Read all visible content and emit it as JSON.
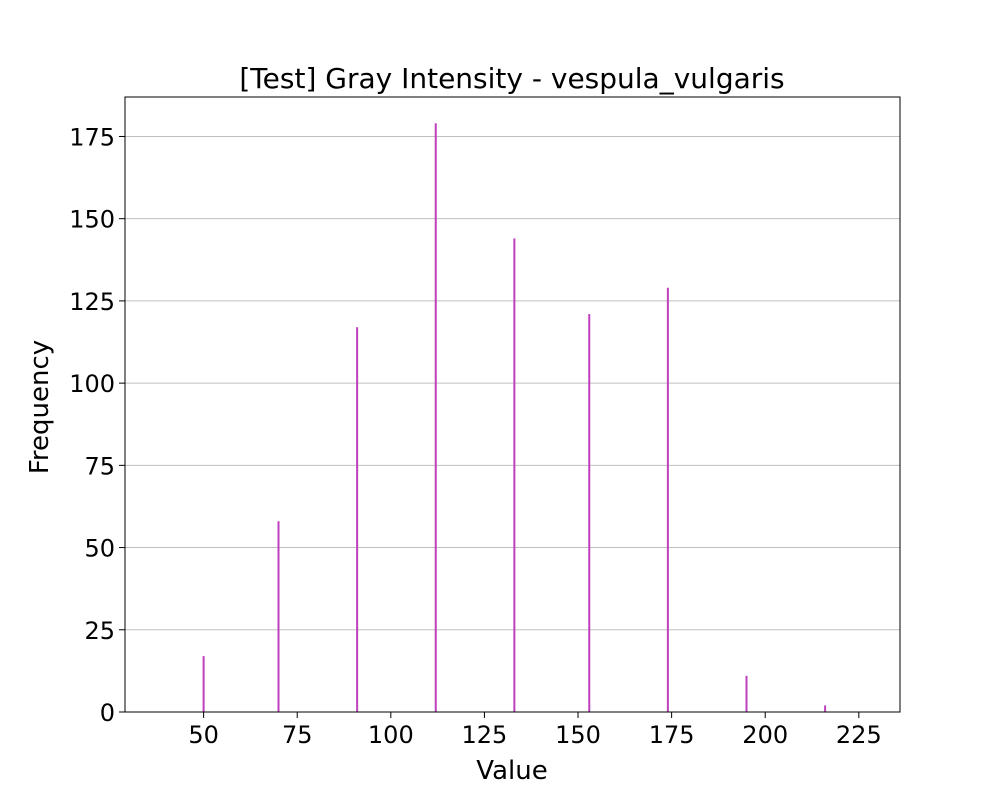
{
  "chart_data": {
    "type": "bar",
    "title": "[Test] Gray Intensity - vespula_vulgaris",
    "xlabel": "Value",
    "ylabel": "Frequency",
    "xlim": [
      29,
      236
    ],
    "ylim": [
      0,
      187
    ],
    "xticks": [
      50,
      75,
      100,
      125,
      150,
      175,
      200,
      225
    ],
    "yticks": [
      0,
      25,
      50,
      75,
      100,
      125,
      150,
      175
    ],
    "grid": {
      "axis": "y",
      "color": "#c0c0c0"
    },
    "bar_color": "#bf40bf",
    "bars": [
      {
        "x": 50,
        "value": 17
      },
      {
        "x": 70,
        "value": 58
      },
      {
        "x": 91,
        "value": 117
      },
      {
        "x": 112,
        "value": 179
      },
      {
        "x": 133,
        "value": 144
      },
      {
        "x": 153,
        "value": 121
      },
      {
        "x": 174,
        "value": 129
      },
      {
        "x": 195,
        "value": 11
      },
      {
        "x": 216,
        "value": 2
      }
    ]
  }
}
